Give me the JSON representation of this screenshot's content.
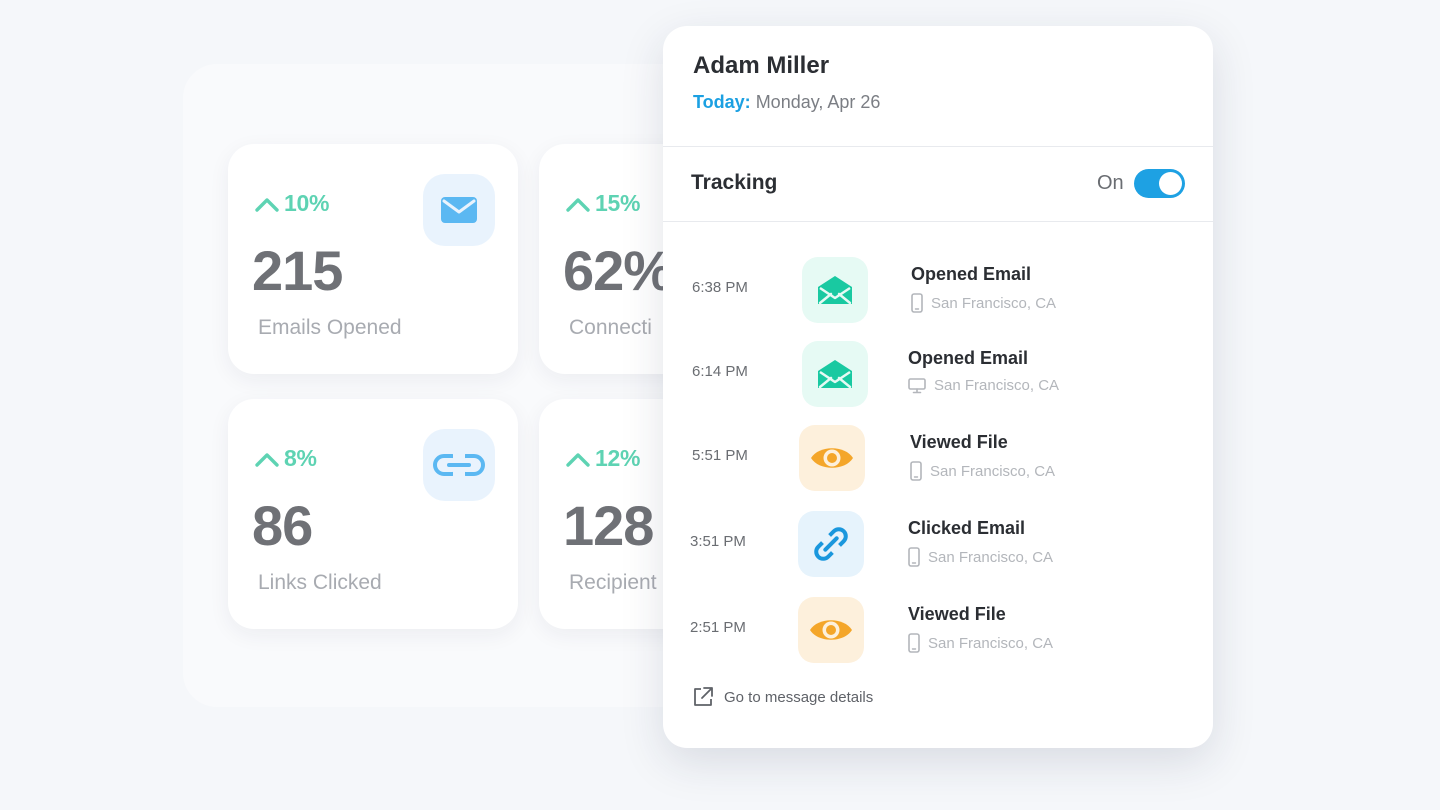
{
  "cards": [
    {
      "trend": "10%",
      "value": "215",
      "label": "Emails Opened",
      "icon": "envelope-icon"
    },
    {
      "trend": "15%",
      "value": "62%",
      "label": "Connecti",
      "icon": ""
    },
    {
      "trend": "8%",
      "value": "86",
      "label": "Links Clicked",
      "icon": "link-icon"
    },
    {
      "trend": "12%",
      "value": "128",
      "label": "Recipient",
      "icon": ""
    }
  ],
  "panel": {
    "name": "Adam Miller",
    "today_label": "Today:",
    "date": "Monday, Apr 26",
    "tracking_label": "Tracking",
    "toggle_state": "On",
    "events": [
      {
        "time": "6:38 PM",
        "title": "Opened Email",
        "location": "San Francisco, CA",
        "icon": "open-envelope-icon",
        "device": "mobile-icon"
      },
      {
        "time": "6:14 PM",
        "title": "Opened Email",
        "location": "San Francisco, CA",
        "icon": "open-envelope-icon",
        "device": "desktop-icon"
      },
      {
        "time": "5:51 PM",
        "title": "Viewed File",
        "location": "San Francisco, CA",
        "icon": "eye-icon",
        "device": "mobile-icon"
      },
      {
        "time": "3:51 PM",
        "title": "Clicked Email",
        "location": "San Francisco, CA",
        "icon": "link-icon",
        "device": "mobile-icon"
      },
      {
        "time": "2:51 PM",
        "title": "Viewed File",
        "location": "San Francisco, CA",
        "icon": "eye-icon",
        "device": "mobile-icon"
      }
    ],
    "footer_link": "Go to message details"
  },
  "colors": {
    "accent_blue": "#1ea1e3",
    "trend_green": "#5ed3b3",
    "email_teal": "#19c9a1",
    "file_orange": "#f4a62a"
  }
}
